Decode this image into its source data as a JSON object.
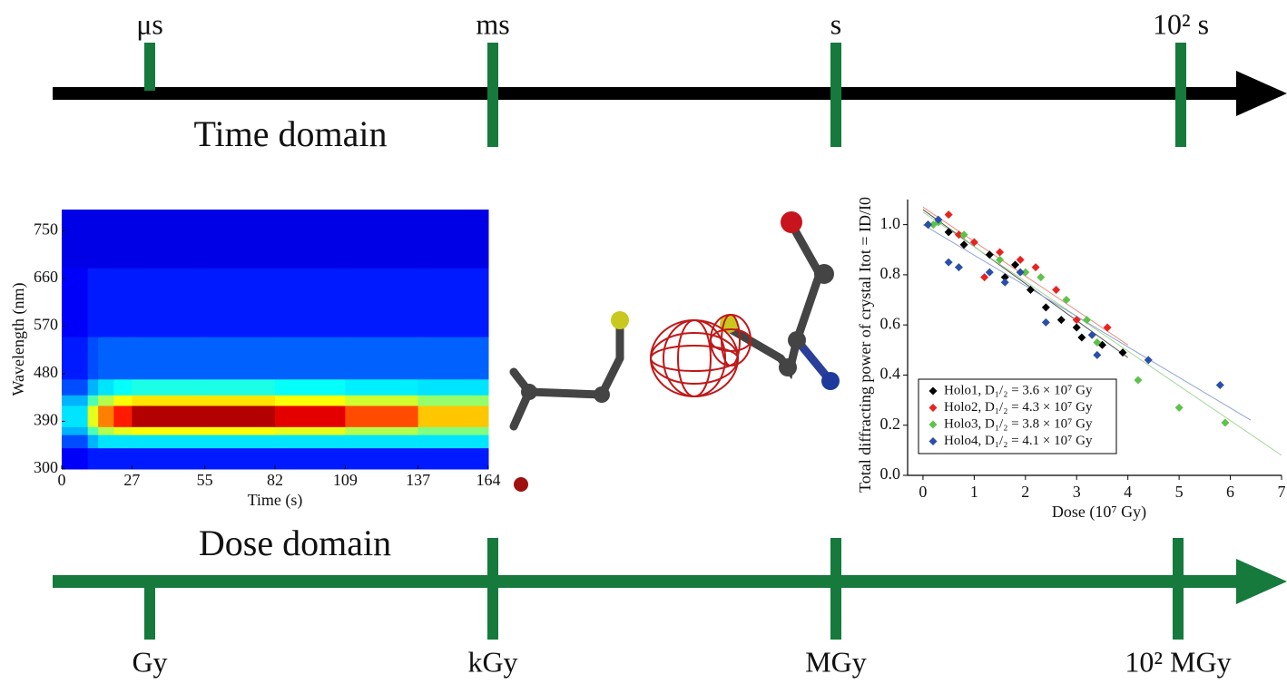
{
  "timeline": {
    "time_label": "Time domain",
    "time_ticks": [
      "μs",
      "ms",
      "s",
      "10² s"
    ],
    "dose_label": "Dose domain",
    "dose_ticks": [
      "Gy",
      "kGy",
      "MGy",
      "10² MGy"
    ]
  },
  "chart_data": [
    {
      "type": "heatmap",
      "x_label": "Time (s)",
      "y_label": "Wavelength (nm)",
      "x_bins": [
        0,
        10,
        14,
        20,
        27,
        55,
        82,
        109,
        137,
        164
      ],
      "y_bins": [
        300,
        340,
        365,
        380,
        400,
        420,
        440,
        470,
        550,
        680,
        790
      ],
      "values": [
        [
          0.12,
          0.15,
          0.15,
          0.15,
          0.15,
          0.15,
          0.15,
          0.15,
          0.15
        ],
        [
          0.2,
          0.3,
          0.35,
          0.35,
          0.35,
          0.35,
          0.35,
          0.35,
          0.35
        ],
        [
          0.3,
          0.45,
          0.55,
          0.6,
          0.62,
          0.62,
          0.6,
          0.55,
          0.5
        ],
        [
          0.35,
          0.6,
          0.75,
          0.85,
          0.95,
          0.95,
          0.9,
          0.8,
          0.68
        ],
        [
          0.35,
          0.6,
          0.75,
          0.85,
          0.95,
          0.95,
          0.9,
          0.8,
          0.68
        ],
        [
          0.3,
          0.45,
          0.55,
          0.62,
          0.65,
          0.65,
          0.62,
          0.58,
          0.52
        ],
        [
          0.2,
          0.3,
          0.35,
          0.38,
          0.4,
          0.4,
          0.38,
          0.36,
          0.35
        ],
        [
          0.15,
          0.2,
          0.22,
          0.22,
          0.22,
          0.22,
          0.22,
          0.22,
          0.22
        ],
        [
          0.12,
          0.15,
          0.15,
          0.15,
          0.15,
          0.15,
          0.15,
          0.15,
          0.15
        ],
        [
          0.1,
          0.1,
          0.1,
          0.1,
          0.1,
          0.1,
          0.1,
          0.1,
          0.1
        ]
      ],
      "xlim": [
        0,
        164
      ],
      "ylim": [
        300,
        790
      ],
      "xticks": [
        0,
        27,
        55,
        82,
        109,
        137,
        164
      ],
      "yticks": [
        300,
        390,
        480,
        570,
        660,
        750
      ]
    },
    {
      "type": "scatter",
      "x_label": "Dose (10⁷ Gy)",
      "y_label": "Total diffracting power of crystal Itot = ID/I0",
      "xlim": [
        -0.3,
        7
      ],
      "ylim": [
        0,
        1.1
      ],
      "xticks": [
        0,
        1,
        2,
        3,
        4,
        5,
        6,
        7
      ],
      "yticks": [
        {
          "value": 0,
          "label": "0.0"
        },
        0.2,
        0.4,
        0.6,
        0.8,
        {
          "value": 1,
          "label": "1.0"
        }
      ],
      "legend": "lower-left",
      "series": [
        {
          "name": "Holo1, D₁/₂ = 3.6 × 10⁷ Gy",
          "color": "#000000",
          "fit_color": "#555555",
          "x": [
            0.1,
            0.5,
            0.8,
            1.3,
            1.6,
            1.8,
            2.1,
            2.4,
            2.7,
            3.0,
            3.1,
            3.5,
            3.9
          ],
          "values": [
            1.0,
            0.97,
            0.92,
            0.88,
            0.79,
            0.84,
            0.74,
            0.67,
            0.62,
            0.59,
            0.55,
            0.52,
            0.49
          ],
          "fit": {
            "x": [
              0,
              4
            ],
            "values": [
              1.06,
              0.47
            ]
          }
        },
        {
          "name": "Holo2, D₁/₂ = 4.3 × 10⁷ Gy",
          "color": "#e8231f",
          "fit_color": "#f08a7a",
          "x": [
            0.5,
            0.7,
            1.0,
            1.2,
            1.5,
            1.9,
            2.2,
            2.6,
            3.0,
            3.6
          ],
          "values": [
            1.04,
            0.96,
            0.93,
            0.79,
            0.89,
            0.86,
            0.83,
            0.74,
            0.62,
            0.59
          ],
          "fit": {
            "x": [
              0,
              4
            ],
            "values": [
              1.07,
              0.52
            ]
          }
        },
        {
          "name": "Holo3, D₁/₂ = 3.8 × 10⁷ Gy",
          "color": "#5dc24a",
          "fit_color": "#a6d89a",
          "x": [
            0.2,
            0.3,
            0.8,
            1.5,
            2.0,
            2.3,
            2.8,
            3.2,
            3.4,
            4.2,
            5.0,
            5.9
          ],
          "values": [
            1.0,
            1.01,
            0.96,
            0.86,
            0.81,
            0.79,
            0.7,
            0.62,
            0.53,
            0.38,
            0.27,
            0.21
          ],
          "fit": {
            "x": [
              0,
              7
            ],
            "values": [
              1.05,
              0.08
            ]
          }
        },
        {
          "name": "Holo4, D₁/₂ = 4.1 × 10⁷ Gy",
          "color": "#2a4fa8",
          "fit_color": "#8fa3d6",
          "x": [
            0.1,
            0.3,
            0.5,
            0.7,
            1.3,
            1.6,
            1.9,
            2.4,
            3.3,
            3.4,
            4.4,
            5.8
          ],
          "values": [
            1.0,
            1.02,
            0.85,
            0.83,
            0.81,
            0.77,
            0.81,
            0.61,
            0.56,
            0.48,
            0.46,
            0.36
          ],
          "fit": {
            "x": [
              0,
              6.4
            ],
            "values": [
              1.0,
              0.22
            ]
          }
        }
      ]
    }
  ]
}
